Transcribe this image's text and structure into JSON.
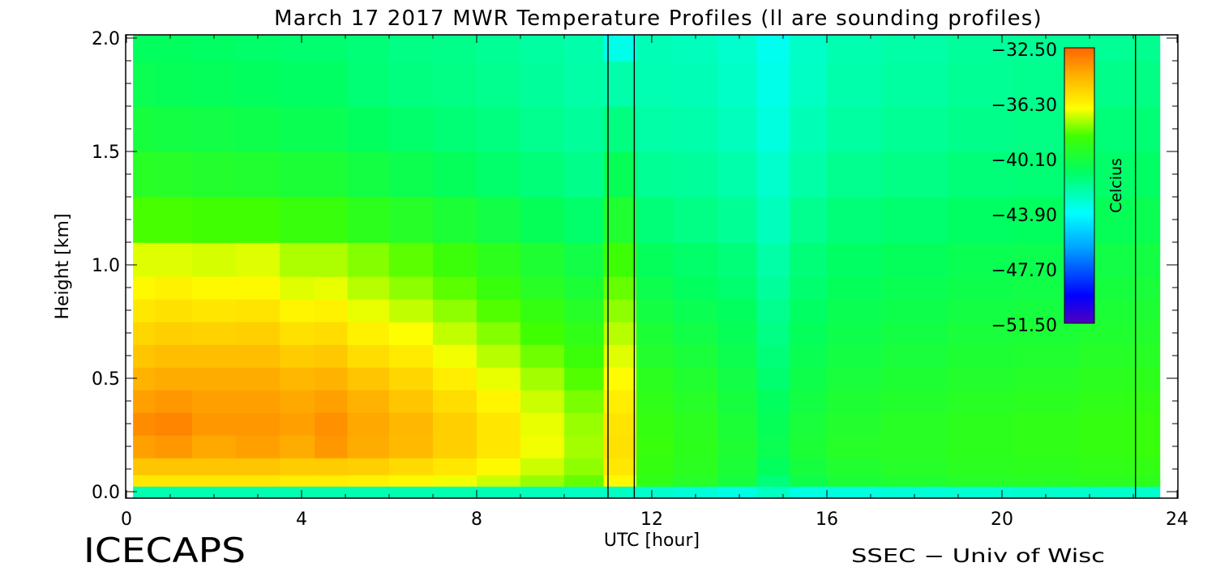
{
  "chart_data": {
    "type": "heatmap",
    "title": "March 17 2017 MWR Temperature Profiles (ll are sounding profiles)",
    "xlabel": "UTC [hour]",
    "ylabel": "Height [km]",
    "xlim": [
      0,
      24
    ],
    "ylim": [
      0,
      2
    ],
    "xticks": [
      0,
      4,
      8,
      12,
      16,
      20,
      24
    ],
    "xtick_labels": [
      "0",
      "4",
      "8",
      "12",
      "16",
      "20",
      "24"
    ],
    "yticks": [
      0.0,
      0.5,
      1.0,
      1.5,
      2.0
    ],
    "ytick_labels": [
      "0.0",
      "0.5",
      "1.0",
      "1.5",
      "2.0"
    ],
    "colorbar": {
      "label": "Celcius",
      "range": [
        -51.5,
        -32.5
      ],
      "ticks": [
        -32.5,
        -36.3,
        -40.1,
        -43.9,
        -47.7,
        -51.5
      ],
      "tick_labels": [
        "−32.50",
        "−36.30",
        "−40.10",
        "−43.90",
        "−47.70",
        "−51.50"
      ]
    },
    "sounding_profiles_utc": [
      11.0,
      11.6,
      23.05
    ],
    "data_coverage_utc": [
      0.15,
      23.6
    ],
    "grid": false,
    "legend": "colorbar top-right inside plot",
    "times": [
      0.3,
      1.0,
      2.0,
      3.0,
      4.0,
      4.6,
      5.5,
      6.5,
      7.5,
      8.5,
      9.5,
      10.5,
      11.3,
      12.0,
      13.0,
      14.0,
      14.8,
      15.5,
      16.5,
      18.0,
      19.5,
      21.0,
      22.5,
      23.5
    ],
    "heights": [
      0.0,
      0.05,
      0.1,
      0.2,
      0.3,
      0.4,
      0.5,
      0.6,
      0.7,
      0.8,
      0.9,
      1.0,
      1.2,
      1.4,
      1.6,
      1.8,
      2.0
    ],
    "temperature_profiles": [
      [
        -42.5,
        -36.0,
        -35.0,
        -34.0,
        -33.5,
        -34.0,
        -34.5,
        -35.0,
        -35.5,
        -36.0,
        -36.5,
        -37.0,
        -38.5,
        -39.5,
        -40.2,
        -40.7,
        -41.0
      ],
      [
        -42.5,
        -36.0,
        -35.0,
        -33.8,
        -33.3,
        -33.8,
        -34.3,
        -34.8,
        -35.3,
        -35.8,
        -36.3,
        -37.0,
        -38.5,
        -39.6,
        -40.3,
        -40.8,
        -41.0
      ],
      [
        -42.5,
        -36.0,
        -35.0,
        -34.2,
        -33.8,
        -34.0,
        -34.3,
        -34.8,
        -35.4,
        -36.0,
        -36.5,
        -37.1,
        -38.6,
        -39.7,
        -40.4,
        -40.9,
        -41.1
      ],
      [
        -42.5,
        -36.0,
        -35.0,
        -34.0,
        -33.8,
        -34.0,
        -34.3,
        -34.8,
        -35.3,
        -35.9,
        -36.5,
        -37.0,
        -38.6,
        -39.8,
        -40.5,
        -41.0,
        -41.2
      ],
      [
        -42.5,
        -36.2,
        -35.2,
        -34.3,
        -34.0,
        -34.2,
        -34.6,
        -35.2,
        -35.8,
        -36.4,
        -37.0,
        -37.5,
        -38.9,
        -40.0,
        -40.7,
        -41.1,
        -41.3
      ],
      [
        -42.5,
        -36.2,
        -35.2,
        -33.8,
        -33.6,
        -34.0,
        -34.5,
        -35.1,
        -35.7,
        -36.3,
        -36.9,
        -37.5,
        -38.9,
        -40.0,
        -40.7,
        -41.1,
        -41.3
      ],
      [
        -42.5,
        -36.3,
        -35.3,
        -34.3,
        -34.2,
        -34.5,
        -35.0,
        -35.7,
        -36.3,
        -36.9,
        -37.4,
        -37.9,
        -39.3,
        -40.3,
        -41.0,
        -41.4,
        -41.5
      ],
      [
        -42.5,
        -36.5,
        -35.6,
        -34.7,
        -34.6,
        -35.0,
        -35.5,
        -36.1,
        -36.7,
        -37.3,
        -37.8,
        -38.3,
        -39.6,
        -40.6,
        -41.2,
        -41.6,
        -41.7
      ],
      [
        -42.5,
        -36.8,
        -36.0,
        -35.3,
        -35.3,
        -35.7,
        -36.2,
        -36.8,
        -37.3,
        -37.8,
        -38.3,
        -38.8,
        -40.0,
        -40.9,
        -41.4,
        -41.7,
        -41.8
      ],
      [
        -42.6,
        -37.2,
        -36.5,
        -36.0,
        -36.0,
        -36.4,
        -36.9,
        -37.4,
        -37.9,
        -38.4,
        -38.9,
        -39.3,
        -40.4,
        -41.2,
        -41.6,
        -41.9,
        -42.0
      ],
      [
        -42.7,
        -37.7,
        -37.2,
        -36.8,
        -36.9,
        -37.2,
        -37.6,
        -38.1,
        -38.6,
        -39.0,
        -39.5,
        -39.9,
        -40.8,
        -41.5,
        -41.9,
        -42.1,
        -42.2
      ],
      [
        -42.8,
        -38.2,
        -37.8,
        -37.6,
        -37.7,
        -38.0,
        -38.4,
        -38.8,
        -39.2,
        -39.6,
        -40.0,
        -40.4,
        -41.2,
        -41.8,
        -42.1,
        -42.3,
        -42.4
      ],
      [
        -42.8,
        -36.5,
        -36.0,
        -35.8,
        -35.9,
        -36.2,
        -36.6,
        -37.0,
        -37.4,
        -37.8,
        -38.2,
        -38.7,
        -39.8,
        -40.8,
        -41.6,
        -42.4,
        -43.5
      ],
      [
        -43.0,
        -39.2,
        -39.0,
        -38.9,
        -39.0,
        -39.2,
        -39.4,
        -39.7,
        -40.0,
        -40.3,
        -40.6,
        -40.9,
        -41.5,
        -42.0,
        -42.3,
        -42.5,
        -42.6
      ],
      [
        -43.2,
        -39.6,
        -39.4,
        -39.3,
        -39.4,
        -39.6,
        -39.8,
        -40.1,
        -40.4,
        -40.7,
        -41.0,
        -41.2,
        -41.7,
        -42.1,
        -42.4,
        -42.6,
        -42.7
      ],
      [
        -43.4,
        -40.2,
        -40.0,
        -39.9,
        -40.0,
        -40.2,
        -40.4,
        -40.6,
        -40.8,
        -41.0,
        -41.3,
        -41.5,
        -42.0,
        -42.4,
        -42.7,
        -42.9,
        -43.0
      ],
      [
        -42.8,
        -41.5,
        -41.0,
        -40.7,
        -40.8,
        -41.0,
        -41.3,
        -41.5,
        -41.7,
        -41.9,
        -42.1,
        -42.3,
        -42.7,
        -43.0,
        -43.3,
        -43.5,
        -43.6
      ],
      [
        -43.4,
        -40.5,
        -40.2,
        -40.0,
        -40.1,
        -40.3,
        -40.5,
        -40.7,
        -40.9,
        -41.1,
        -41.3,
        -41.5,
        -41.9,
        -42.3,
        -42.6,
        -42.8,
        -42.9
      ],
      [
        -43.3,
        -40.0,
        -39.8,
        -39.6,
        -39.7,
        -39.9,
        -40.1,
        -40.3,
        -40.5,
        -40.7,
        -40.9,
        -41.1,
        -41.5,
        -41.9,
        -42.2,
        -42.4,
        -42.5
      ],
      [
        -43.2,
        -39.8,
        -39.6,
        -39.5,
        -39.5,
        -39.7,
        -39.9,
        -40.1,
        -40.3,
        -40.5,
        -40.7,
        -40.9,
        -41.3,
        -41.7,
        -42.0,
        -42.2,
        -42.3
      ],
      [
        -43.1,
        -39.6,
        -39.4,
        -39.3,
        -39.3,
        -39.5,
        -39.7,
        -39.9,
        -40.1,
        -40.3,
        -40.5,
        -40.7,
        -41.1,
        -41.5,
        -41.8,
        -42.0,
        -42.1
      ],
      [
        -43.0,
        -39.5,
        -39.3,
        -39.2,
        -39.2,
        -39.4,
        -39.6,
        -39.8,
        -40.0,
        -40.2,
        -40.4,
        -40.6,
        -41.0,
        -41.4,
        -41.7,
        -41.9,
        -42.0
      ],
      [
        -43.0,
        -39.4,
        -39.2,
        -39.0,
        -39.0,
        -39.2,
        -39.4,
        -39.6,
        -39.8,
        -40.0,
        -40.2,
        -40.4,
        -40.8,
        -41.2,
        -41.5,
        -41.8,
        -42.0
      ],
      [
        -43.0,
        -39.3,
        -39.1,
        -38.9,
        -38.9,
        -39.1,
        -39.3,
        -39.5,
        -39.7,
        -39.9,
        -40.1,
        -40.3,
        -40.7,
        -41.1,
        -41.4,
        -41.7,
        -41.9
      ]
    ]
  },
  "footer": {
    "left_logo": "ICECAPS",
    "right_credit": "SSEC − Univ of Wisc"
  }
}
